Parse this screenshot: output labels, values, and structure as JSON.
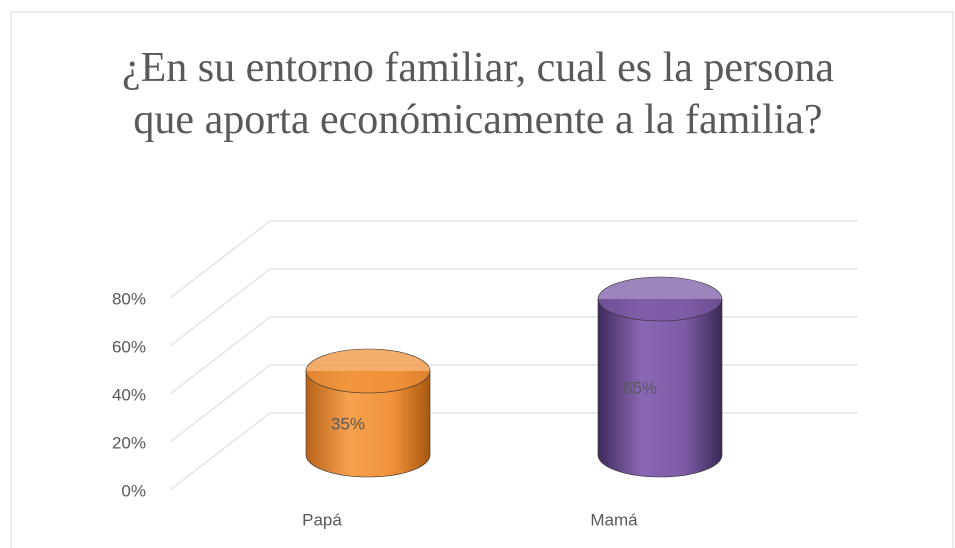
{
  "chart_data": {
    "type": "bar3d",
    "title": "¿En su entorno familiar, cual es la persona que aporta económicamente a la familia?",
    "categories": [
      "Papá",
      "Mamá"
    ],
    "values": [
      35,
      65
    ],
    "value_labels": [
      "35%",
      "65%"
    ],
    "colors": [
      "#f0923a",
      "#7d5ba6"
    ],
    "ylim": [
      0,
      80
    ],
    "yticks": [
      {
        "value": 0,
        "label": "0%"
      },
      {
        "value": 20,
        "label": "20%"
      },
      {
        "value": 40,
        "label": "40%"
      },
      {
        "value": 60,
        "label": "60%"
      },
      {
        "value": 80,
        "label": "80%"
      }
    ],
    "grid": true
  }
}
